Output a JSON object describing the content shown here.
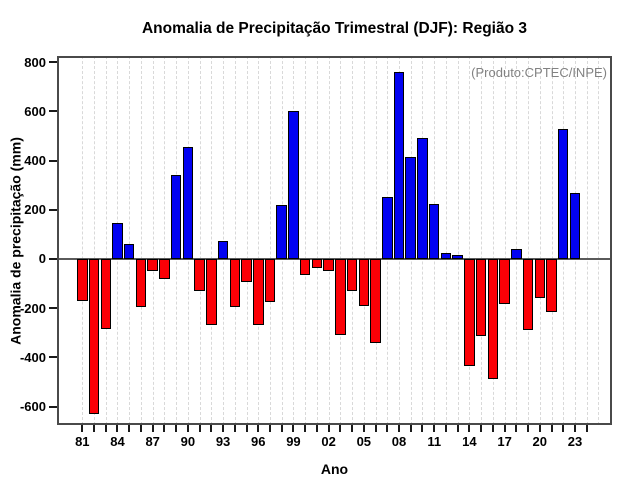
{
  "chart_data": {
    "type": "bar",
    "title": "Anomalia de Precipitação Trimestral (DJF): Região 3",
    "xlabel": "Ano",
    "ylabel": "Anomalia de precipitação (mm)",
    "annotation": "(Produto:CPTEC/INPE)",
    "categories": [
      "81",
      "82",
      "83",
      "84",
      "85",
      "86",
      "87",
      "88",
      "89",
      "90",
      "91",
      "92",
      "93",
      "94",
      "95",
      "96",
      "97",
      "98",
      "99",
      "00",
      "01",
      "02",
      "03",
      "04",
      "05",
      "06",
      "07",
      "08",
      "09",
      "10",
      "11",
      "12",
      "13",
      "14",
      "15",
      "16",
      "17",
      "18",
      "19",
      "20",
      "21",
      "22",
      "23"
    ],
    "values": [
      -170,
      -630,
      -285,
      145,
      60,
      -195,
      -50,
      -80,
      340,
      455,
      -130,
      -270,
      75,
      -195,
      -95,
      -270,
      -175,
      220,
      600,
      -65,
      -35,
      -50,
      -310,
      -130,
      -190,
      -340,
      250,
      760,
      415,
      490,
      225,
      25,
      15,
      -435,
      -315,
      -490,
      -185,
      40,
      -290,
      -160,
      -215,
      530,
      270
    ],
    "x_tick_labels": [
      "81",
      "84",
      "87",
      "90",
      "93",
      "96",
      "99",
      "02",
      "05",
      "08",
      "11",
      "14",
      "17",
      "20",
      "23"
    ],
    "x_label_every": 3,
    "y_ticks": [
      800,
      600,
      400,
      200,
      0,
      -200,
      -400,
      -600
    ],
    "ylim": [
      -675,
      825
    ],
    "grid": "vertical-dashed-per-year",
    "legend": "none",
    "colors": {
      "positive": "#0202f2",
      "negative": "#fb0006",
      "bar_border": "#000000",
      "annotation_text": "#828282",
      "gridline": "#d9d9d9",
      "axis_box": "#4a4a4a",
      "zero_line": "#5a5a5a"
    }
  }
}
